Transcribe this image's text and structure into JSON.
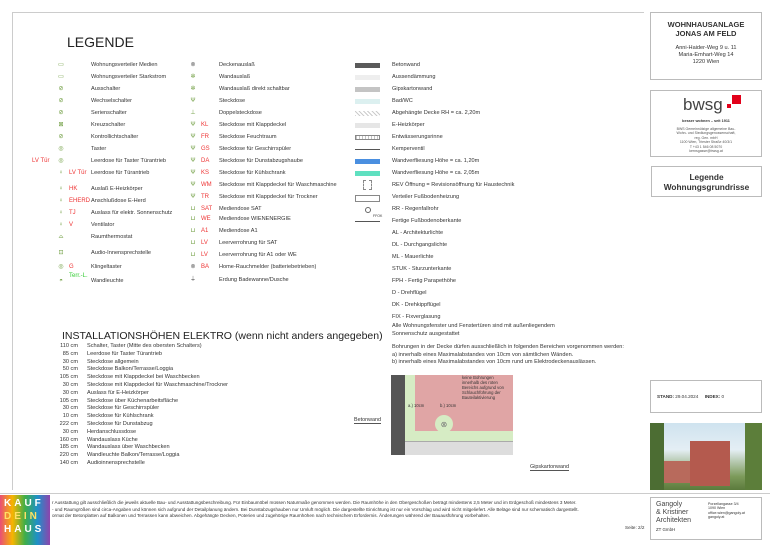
{
  "header": {
    "title": "LEGENDE"
  },
  "col1": [
    {
      "icon": "media-distributor-icon",
      "label": "Wohnungsverteiler Medien"
    },
    {
      "icon": "power-distributor-icon",
      "label": "Wohnungsverteiler Starkstrom"
    },
    {
      "icon": "switch-icon",
      "label": "Ausschalter"
    },
    {
      "icon": "changeover-switch-icon",
      "label": "Wechselschalter"
    },
    {
      "icon": "series-switch-icon",
      "label": "Serienschalter"
    },
    {
      "icon": "cross-switch-icon",
      "label": "Kreuzschalter"
    },
    {
      "icon": "indicator-switch-icon",
      "label": "Kontrollichtschalter"
    },
    {
      "icon": "push-button-icon",
      "label": "Taster"
    },
    {
      "icon": "push-button-icon",
      "tag": "LV Tür",
      "label": "Leerdose für Taster Türantrieb"
    },
    {
      "icon": "outlet-pin-icon",
      "tag": "LV Tür",
      "label": "Leerdose für Türantrieb"
    },
    {
      "icon": "outlet-pin-icon",
      "tag": "HK",
      "label": "Auslaß E-Heizkörper"
    },
    {
      "icon": "outlet-pin-icon",
      "tag": "EHERD",
      "label": "Anschlußdose E-Herd"
    },
    {
      "icon": "sunshade-outlet-icon",
      "tag": "TJ",
      "label": "Auslass für elektr. Sonnenschutz"
    },
    {
      "icon": "fan-icon",
      "tag": "V",
      "label": "Ventilator"
    },
    {
      "icon": "thermostat-icon",
      "label": "Raumthermostat"
    },
    {
      "icon": "intercom-icon",
      "label": "Audio-Innensprechstelle"
    },
    {
      "icon": "doorbell-icon",
      "tag": "G",
      "label": "Klingeltaster"
    },
    {
      "icon": "wall-lamp-icon",
      "tag": "Terr.-L.",
      "label": "Wandleuchte"
    }
  ],
  "col2": [
    {
      "icon": "ceiling-outlet-icon",
      "label": "Deckenauslaß"
    },
    {
      "icon": "wall-outlet-icon",
      "label": "Wandauslaß"
    },
    {
      "icon": "wall-outlet-icon",
      "label": "Wandauslaß direkt schaltbar"
    },
    {
      "icon": "socket-icon",
      "label": "Steckdose"
    },
    {
      "icon": "double-socket-icon",
      "label": "Doppelsteckdose"
    },
    {
      "icon": "socket-icon",
      "tag": "KL",
      "label": "Steckdose mit Klappdeckel"
    },
    {
      "icon": "socket-icon",
      "tag": "FR",
      "label": "Steckdose Feuchtraum"
    },
    {
      "icon": "socket-icon",
      "tag": "GS",
      "label": "Steckdose für Geschirrspüler"
    },
    {
      "icon": "socket-icon",
      "tag": "DA",
      "label": "Steckdose für Dunstabzugshaube"
    },
    {
      "icon": "socket-icon",
      "tag": "KS",
      "label": "Steckdose für Kühlschrank"
    },
    {
      "icon": "socket-icon",
      "tag": "WM",
      "label": "Steckdose mit Klappdeckel für Waschmaschine"
    },
    {
      "icon": "socket-icon",
      "tag": "TR",
      "label": "Steckdose mit Klappdeckel für Trockner"
    },
    {
      "icon": "media-outlet-icon",
      "tag": "SAT",
      "label": "Mediendose SAT"
    },
    {
      "icon": "media-outlet-icon",
      "tag": "WE",
      "label": "Mediendose WIENENERGIE"
    },
    {
      "icon": "media-outlet-icon",
      "tag": "A1",
      "label": "Mediendose A1"
    },
    {
      "icon": "conduit-icon",
      "tag": "LV",
      "label": "Leerverrohrung für SAT"
    },
    {
      "icon": "conduit-icon",
      "tag": "LV",
      "label": "Leerverrohrung für A1 oder WE"
    },
    {
      "icon": "smoke-detector-icon",
      "tag": "BA",
      "label": "Home-Rauchmelder (batteriebetrieben)"
    },
    {
      "icon": "grounding-icon",
      "label": "Erdung Badewanne/Dusche"
    }
  ],
  "col3": [
    {
      "swatch": "#5a5a5a",
      "label": "Betonwand"
    },
    {
      "swatch": "#eeeeee",
      "label": "Aussendämmung"
    },
    {
      "swatch": "#c4c4c4",
      "label": "Gipskartonwand"
    },
    {
      "swatch": "#dcf0f0",
      "label": "Bad/WC"
    },
    {
      "swatch": "hatch",
      "label": "Abgehängte Decke RH = ca. 2,20m"
    },
    {
      "swatch": "#e6e6e6",
      "label": "E-Heizkörper"
    },
    {
      "swatch": "grate",
      "label": "Entwässerungsrinne"
    },
    {
      "swatch": "valve",
      "label": "Kemperventil"
    },
    {
      "swatch": "#4a8fe0",
      "label": "Wandverfliesung Höhe = ca. 1,20m"
    },
    {
      "swatch": "#5fe0c0",
      "label": "Wandverfliesung Höhe = ca. 2,05m"
    },
    {
      "swatch": "rev",
      "label": "REV Öffnung = Revisionsöffnung für Haustechnik"
    },
    {
      "swatch": "manifold",
      "label": "Verteiler Fußbodenheizung"
    },
    {
      "swatch": "downpipe",
      "label": "RR - Regenfallrohr"
    },
    {
      "swatch": "ffok",
      "marker": "FFOK",
      "label": "Fertige Fußbodenoberkante"
    },
    {
      "label": "AL - Architekturlichte"
    },
    {
      "label": "DL - Durchgangslichte"
    },
    {
      "label": "ML - Mauerlichte"
    },
    {
      "label": "STUK - Sturzunterkante"
    },
    {
      "label": "FPH - Fertig Parapethöhe"
    },
    {
      "label": "D - Drehflügel"
    },
    {
      "label": "DK - Drehkippflügel"
    },
    {
      "label": "FIX - Fixverglasung"
    }
  ],
  "notes": {
    "sunshade": [
      "Alle Wohnungsfenster und Fenstertüren sind mit außenliegendem",
      "Sonnenschutz ausgestattet"
    ],
    "drilling": [
      "Bohrungen in der Decke dürfen ausschließlich in folgenden Bereichen vorgenommen werden:",
      "a) innerhalb eines Maximalabstandes von 10cm von sämtlichen Wänden.",
      "b) innerhalb eines Maximalabstandes von 10cm rund um Elektrodeckenauslässen."
    ]
  },
  "diagram": {
    "no_drill": [
      "keine Bohrungen",
      "innerhalb des roten",
      "Bereichs aufgrund von",
      "Schlauchführung der",
      "Bauteilaktivierung"
    ],
    "a": "a.) 10cm",
    "b": "b.) 10cm",
    "concrete": "Betonwand",
    "gypsum": "Gipskartonwand",
    "colors": {
      "concrete": "#555555",
      "green": "#d6ecc4",
      "red": "#e0a5a5",
      "gypsum": "#dddddd"
    }
  },
  "install": {
    "title": "INSTALLATIONSHÖHEN ELEKTRO (wenn nicht anders angegeben)",
    "rows": [
      {
        "h": "110 cm",
        "t": "Schalter, Taster (Mitte des obersten Schalters)"
      },
      {
        "h": "85 cm",
        "t": "Leerdose für Taster Türantrieb"
      },
      {
        "h": "30 cm",
        "t": "Steckdose allgemein"
      },
      {
        "h": "50 cm",
        "t": "Steckdose Balkon/Terrasse/Loggia"
      },
      {
        "h": "105 cm",
        "t": "Steckdose mit Klappdeckel bei Waschbecken"
      },
      {
        "h": "30 cm",
        "t": "Steckdose mit Klappdeckel für Waschmaschine/Trockner"
      },
      {
        "h": "30 cm",
        "t": "Auslass für E-Heizkörper"
      },
      {
        "h": "105 cm",
        "t": "Steckdose über Küchenarbeitsfläche"
      },
      {
        "h": "30 cm",
        "t": "Steckdose für Geschirrspüler"
      },
      {
        "h": "10 cm",
        "t": "Steckdose für Kühlschrank"
      },
      {
        "h": "222 cm",
        "t": "Steckdose für Dunstabzug"
      },
      {
        "h": "30 cm",
        "t": "Herdanschlussdose"
      },
      {
        "h": "160 cm",
        "t": "Wandauslass Küche"
      },
      {
        "h": "185 cm",
        "t": "Wandauslass über Waschbecken"
      },
      {
        "h": "220 cm",
        "t": "Wandleuchte Balkon/Terrasse/Loggia"
      },
      {
        "h": "140 cm",
        "t": "Audioinnensprechstelle"
      }
    ]
  },
  "project": {
    "name1": "WOHNHAUSANLAGE",
    "name2": "JONAS AM FELD",
    "addr": [
      "Anni-Haider-Weg 9 u. 11",
      "Maria-Emhart-Weg 14",
      "1220 Wien"
    ]
  },
  "developer": {
    "logo": "bwsg",
    "slogan": "besser wohnen – seit 1911",
    "info": [
      "BWS Gemeinnützige allgemeine Bau-",
      "Wohn- und Siedlungsgenossenschaft,",
      "reg. Gen. mbH",
      "1100 Wien, Triester Straße 40/3/1",
      "T +43 1 546 08 5070",
      "kernsgasse@bwsg.at"
    ],
    "brand_color": "#e2001a"
  },
  "doc": {
    "title1": "Legende",
    "title2": "Wohnungsgrundrisse",
    "stand_label": "STAND:",
    "stand": "29.04.2024",
    "index_label": "INDEX:",
    "index": "0"
  },
  "footer": {
    "lines": [
      "r Ausstattung gilt ausschließlich die jeweils aktuelle Bau- und Ausstattungsbeschreibung. Für Einbaumöbel müssen Naturmaße genommen werden. Die Raumhöhe in den Obergeschoßen beträgt mindestens 2,5 Meter und im Erdgeschoß mindestens 3 Meter.",
      "- und Raumgrößen sind circa-Angaben und können sich aufgrund der Detailplanung ändern. Bei Dunstabzugshauben nur Umluft möglich. Die dargestellte Einrichtung ist nur ein Vorschlag und wird nicht mitgeliefert. Alle Beläge sind nur schematisch dargestellt.",
      "ormat der Betonplatten auf Balkonen und Terrassen kann abweichen. Abgehängte Decken, Poterien und zugehörige Raumhöhen nach technischem Erfordernis. Änderungen während der Bauausführung vorbehalten."
    ],
    "page": "Seite: 2/2",
    "logo": [
      "KAUF",
      "DEIN",
      "HAUS"
    ]
  },
  "architect": {
    "name": [
      "Gangoly",
      "& Kristiner",
      "Architekten"
    ],
    "suffix": "ZT GmbH",
    "info": [
      "Porzellangasse 3/4",
      "1090 Wien",
      "office.wien@gangoly.at",
      "gangoly.at"
    ]
  }
}
